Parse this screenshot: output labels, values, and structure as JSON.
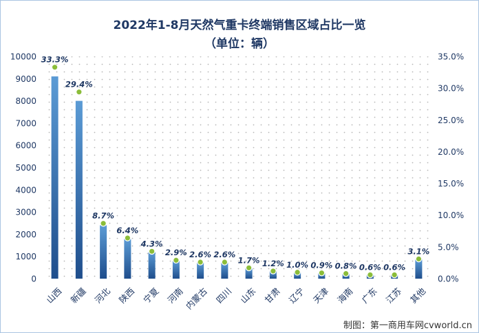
{
  "title": "2022年1-8月天然气重卡终端销售区域占比一览",
  "subtitle": "（单位：辆）",
  "credit": "制图：第一商用车网cvworld.cn",
  "colors": {
    "bar_top": "#5b9bd5",
    "bar_bottom": "#1f4e8c",
    "marker": "#8bbd3a",
    "label": "#1f3864",
    "axis_text": "#1f3864",
    "dots": "#b5b5b5"
  },
  "chart_data": {
    "type": "bar",
    "title": "2022年1-8月天然气重卡终端销售区域占比一览",
    "subtitle": "（单位：辆）",
    "categories": [
      "山西",
      "新疆",
      "河北",
      "陕西",
      "宁夏",
      "河南",
      "内蒙古",
      "四川",
      "山东",
      "甘肃",
      "辽宁",
      "天津",
      "海南",
      "广东",
      "江苏",
      "其他"
    ],
    "series": [
      {
        "axis": "left",
        "values": [
          9100,
          8000,
          2400,
          1780,
          1200,
          800,
          720,
          720,
          460,
          340,
          270,
          250,
          220,
          170,
          160,
          860
        ]
      },
      {
        "axis": "right",
        "type": "line-markers",
        "values": [
          33.3,
          29.4,
          8.7,
          6.4,
          4.3,
          2.9,
          2.6,
          2.6,
          1.7,
          1.2,
          1.0,
          0.9,
          0.8,
          0.6,
          0.6,
          3.1
        ]
      }
    ],
    "data_labels": [
      "33.3%",
      "29.4%",
      "8.7%",
      "6.4%",
      "4.3%",
      "2.9%",
      "2.6%",
      "2.6%",
      "1.7%",
      "1.2%",
      "1.0%",
      "0.9%",
      "0.8%",
      "0.6%",
      "0.6%",
      "3.1%"
    ],
    "ylim": [
      0,
      10000
    ],
    "y_ticks": [
      "0",
      "1000",
      "2000",
      "3000",
      "4000",
      "5000",
      "6000",
      "7000",
      "8000",
      "9000",
      "10000"
    ],
    "y2lim": [
      0,
      35
    ],
    "y2_ticks": [
      "0.0%",
      "5.0%",
      "10.0%",
      "15.0%",
      "20.0%",
      "25.0%",
      "30.0%",
      "35.0%"
    ],
    "grid": false,
    "legend": "none",
    "background": "dotted"
  }
}
